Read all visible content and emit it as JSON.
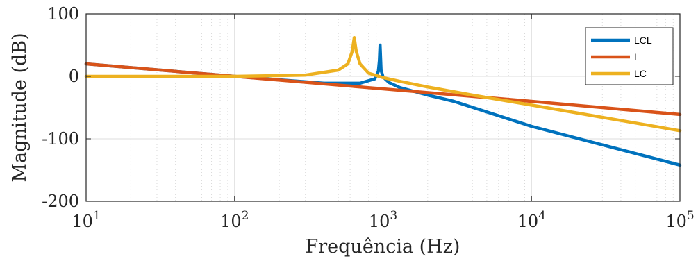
{
  "chart_data": {
    "type": "line",
    "x_scale": "log",
    "xlabel": "Frequência (Hz)",
    "ylabel": "Magnitude (dB)",
    "xlim": [
      10,
      100000
    ],
    "ylim": [
      -200,
      100
    ],
    "x_ticks": [
      10,
      100,
      1000,
      10000,
      100000
    ],
    "x_tick_mantissa": "10",
    "x_tick_exponents": [
      "1",
      "2",
      "3",
      "4",
      "5"
    ],
    "y_ticks": [
      100,
      0,
      -100,
      -200
    ],
    "y_tick_labels": [
      "100",
      "0",
      "-100",
      "-200"
    ],
    "grid": true,
    "legend_position": "top-right",
    "series": [
      {
        "name": "LCL",
        "color": "#0072BD",
        "points": [
          [
            10,
            20
          ],
          [
            100,
            0
          ],
          [
            400,
            -11
          ],
          [
            700,
            -11
          ],
          [
            880,
            -4
          ],
          [
            930,
            8
          ],
          [
            945,
            25
          ],
          [
            955,
            50
          ],
          [
            970,
            10
          ],
          [
            1000,
            -1
          ],
          [
            1100,
            -10
          ],
          [
            1300,
            -18
          ],
          [
            2000,
            -30
          ],
          [
            3000,
            -40
          ],
          [
            10000,
            -80
          ],
          [
            100000,
            -142
          ]
        ]
      },
      {
        "name": "L",
        "color": "#D95319",
        "points": [
          [
            10,
            20
          ],
          [
            100,
            0
          ],
          [
            1000,
            -20
          ],
          [
            10000,
            -40
          ],
          [
            100000,
            -61
          ]
        ]
      },
      {
        "name": "LC",
        "color": "#EDB120",
        "points": [
          [
            10,
            0
          ],
          [
            100,
            0
          ],
          [
            300,
            2
          ],
          [
            500,
            10
          ],
          [
            580,
            20
          ],
          [
            620,
            40
          ],
          [
            640,
            62
          ],
          [
            660,
            40
          ],
          [
            700,
            20
          ],
          [
            800,
            5
          ],
          [
            1000,
            -2
          ],
          [
            1300,
            -8
          ],
          [
            2000,
            -17
          ],
          [
            4000,
            -30
          ],
          [
            10000,
            -46
          ],
          [
            100000,
            -87
          ]
        ]
      }
    ]
  }
}
